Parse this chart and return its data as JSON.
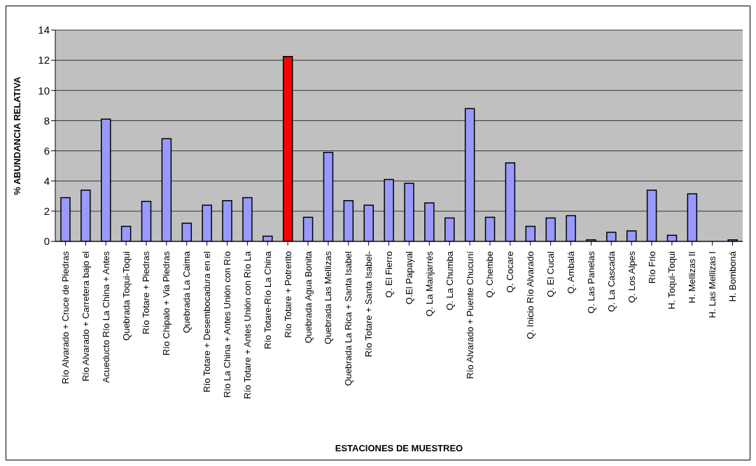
{
  "chart_data": {
    "type": "bar",
    "xlabel": "ESTACIONES DE MUESTREO",
    "ylabel": "% ABUNDANCIA RELATIVA",
    "categories": [
      "Río Alvarado + Cruce de Piedras",
      "Río Alvarado + Carretera bajo el",
      "Acueducto Río La China + Antes",
      "Quebrada Toqui-Toqui",
      "Río Totare + Piedras",
      "Río Chipalo + Via Piedras",
      "Quebrada La Caima",
      "Río Totare + Desembocadura en el",
      "Río La China + Antes Unión con Río",
      "Río Totare + Antes Unión con Río La",
      "Río Totare-Río La China",
      "Río Totare + Potrerito",
      "Quebrada Agua Bonita",
      "Quebrada Las Mellizas",
      "Quebrada La Rica + Santa Isabel",
      "Río Totare + Santa Isabel-",
      "Q. El Fierro",
      "Q.El Papayal",
      "Q. La Manjarrés",
      "Q. La Chumba",
      "Río Alvarado + Puente Chucuní",
      "Q. Chembe",
      "Q. Cocare",
      "Q. Inicio  Río Alvarado",
      "Q. El Cucal",
      "Q. Ambalá",
      "Q. Las Panelas",
      "Q. La Cascada",
      "Q. Los Alpes",
      "Río Frio",
      "H. Toqui-Toqui",
      "H. Mellizas II",
      "H.  Las Mellizas I",
      "H. Bomboná"
    ],
    "values": [
      2.9,
      3.4,
      8.1,
      1.0,
      2.65,
      6.8,
      1.2,
      2.4,
      2.7,
      2.9,
      0.35,
      12.25,
      1.6,
      5.9,
      2.7,
      2.4,
      4.1,
      3.85,
      2.55,
      1.55,
      8.8,
      1.6,
      5.2,
      1.0,
      1.55,
      1.7,
      0.1,
      0.6,
      0.7,
      3.4,
      0.4,
      3.15,
      0,
      0.1
    ],
    "colors": [
      "#9999ff",
      "#9999ff",
      "#9999ff",
      "#9999ff",
      "#9999ff",
      "#9999ff",
      "#9999ff",
      "#9999ff",
      "#9999ff",
      "#9999ff",
      "#9999ff",
      "#ff0000",
      "#9999ff",
      "#9999ff",
      "#9999ff",
      "#9999ff",
      "#9999ff",
      "#9999ff",
      "#9999ff",
      "#9999ff",
      "#9999ff",
      "#9999ff",
      "#9999ff",
      "#9999ff",
      "#9999ff",
      "#9999ff",
      "#9999ff",
      "#9999ff",
      "#9999ff",
      "#9999ff",
      "#9999ff",
      "#9999ff",
      "#9999ff",
      "#9999ff"
    ],
    "ylim": [
      0,
      14
    ],
    "yticks": [
      0,
      2,
      4,
      6,
      8,
      10,
      12,
      14
    ],
    "grid": "y",
    "legend": false
  }
}
